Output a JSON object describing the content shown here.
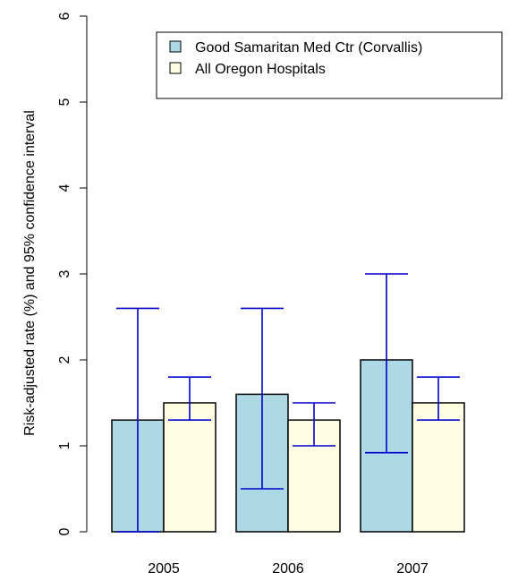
{
  "chart_data": {
    "type": "bar",
    "title": "",
    "xlabel": "",
    "ylabel": "Risk-adjusted rate (%) and 95% confidence interval",
    "ylim": [
      0,
      6
    ],
    "yticks": [
      "0",
      "1",
      "2",
      "3",
      "4",
      "5",
      "6"
    ],
    "categories": [
      "2005",
      "2006",
      "2007"
    ],
    "series": [
      {
        "name": "Good Samaritan Med Ctr (Corvallis)",
        "color": "#add8e6",
        "values": [
          1.3,
          1.6,
          2.0
        ],
        "ci_lower": [
          0.0,
          0.5,
          0.92
        ],
        "ci_upper": [
          2.6,
          2.6,
          3.0
        ]
      },
      {
        "name": "All Oregon Hospitals",
        "color": "#fffde3",
        "values": [
          1.5,
          1.3,
          1.5
        ],
        "ci_lower": [
          1.3,
          1.0,
          1.3
        ],
        "ci_upper": [
          1.8,
          1.5,
          1.8
        ]
      }
    ],
    "errorbar_color": "#0000cc",
    "grid": false,
    "legend_position": "top-right"
  }
}
